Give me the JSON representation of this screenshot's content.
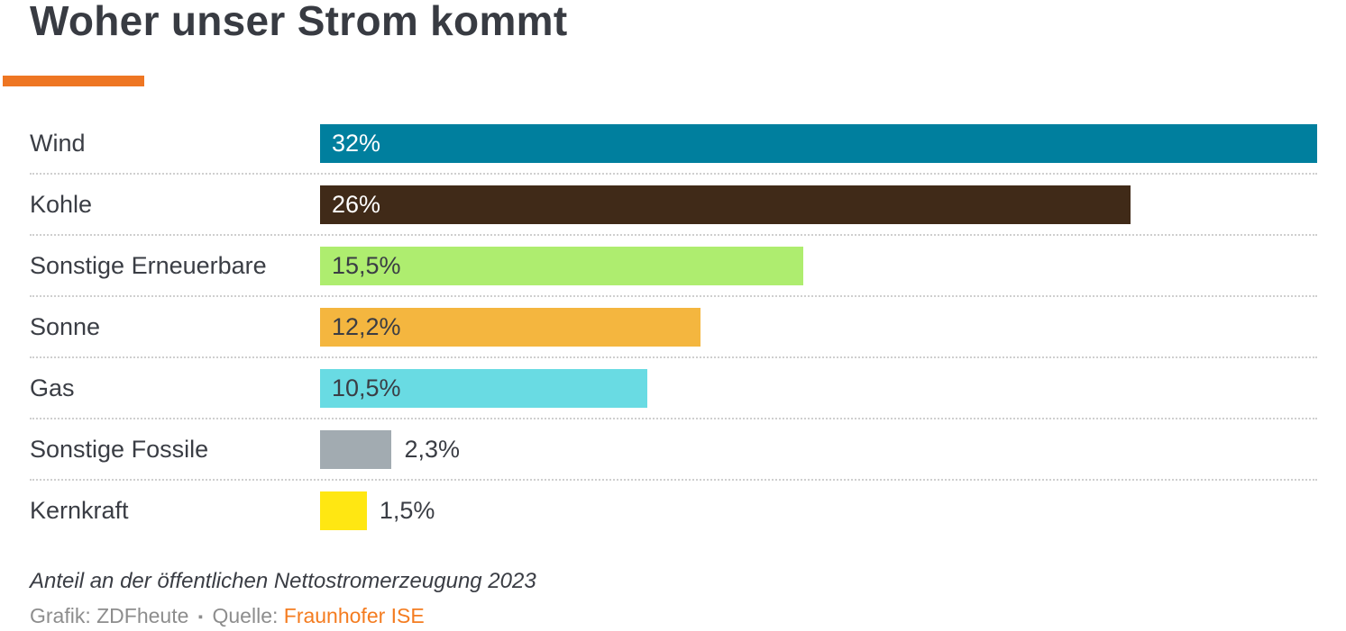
{
  "page": {
    "title": "Woher unser Strom kommt",
    "accent_color": "#ee7623",
    "background": "#ffffff"
  },
  "chart_data": {
    "type": "bar",
    "orientation": "horizontal",
    "title": "Woher unser Strom kommt",
    "categories": [
      "Wind",
      "Kohle",
      "Sonstige Erneuerbare",
      "Sonne",
      "Gas",
      "Sonstige Fossile",
      "Kernkraft"
    ],
    "values": [
      32,
      26,
      15.5,
      12.2,
      10.5,
      2.3,
      1.5
    ],
    "value_labels": [
      "32%",
      "26%",
      "15,5%",
      "12,2%",
      "10,5%",
      "2,3%",
      "1,5%"
    ],
    "bar_colors": [
      "#007f9e",
      "#402a18",
      "#aeed6f",
      "#f4b63f",
      "#69dbe3",
      "#a2abb1",
      "#ffe712"
    ],
    "value_label_colors": [
      "#ffffff",
      "#ffffff",
      "#3a3d44",
      "#3a3d44",
      "#3a3d44",
      "#3a3d44",
      "#3a3d44"
    ],
    "value_label_inside": [
      true,
      true,
      true,
      true,
      true,
      false,
      false
    ],
    "xlim": [
      0,
      32
    ],
    "grid": false,
    "legend": "none",
    "separator_style": "dotted",
    "note": "Anteil an der öffentlichen Nettostromerzeugung 2023"
  },
  "footer": {
    "note": "Anteil an der öffentlichen Nettostromerzeugung 2023",
    "credit_prefix": "Grafik: ZDFheute",
    "separator": "▪",
    "source_label": "Quelle:",
    "source_link": "Fraunhofer ISE",
    "source_link_color": "#f47c20",
    "credit_text_color": "#8d8d8d"
  }
}
